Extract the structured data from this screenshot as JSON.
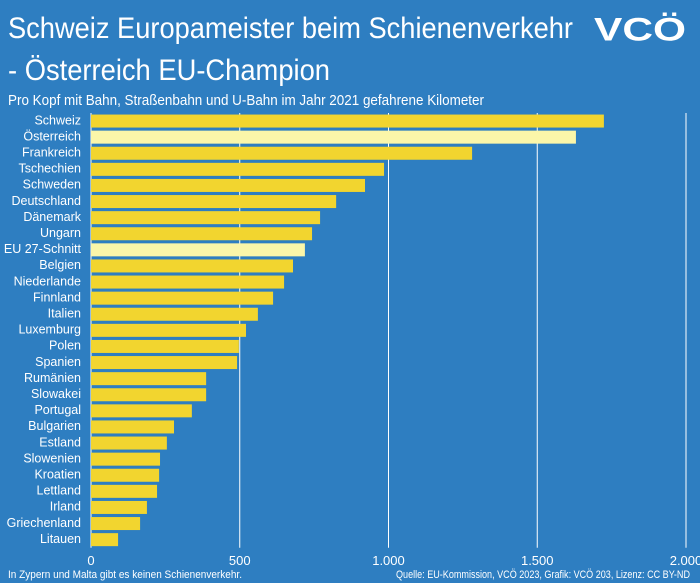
{
  "chart_data": {
    "type": "bar",
    "orientation": "horizontal",
    "title": [
      "Schweiz Europameister beim Schienenverkehr",
      "- Österreich EU-Champion"
    ],
    "logo": "VCÖ",
    "subtitle": "Pro Kopf mit Bahn, Straßenbahn und U-Bahn im Jahr 2021 gefahrene Kilometer",
    "categories": [
      "Schweiz",
      "Österreich",
      "Frankreich",
      "Tschechien",
      "Schweden",
      "Deutschland",
      "Dänemark",
      "Ungarn",
      "EU 27-Schnitt",
      "Belgien",
      "Niederlande",
      "Finnland",
      "Italien",
      "Luxemburg",
      "Polen",
      "Spanien",
      "Rumänien",
      "Slowakei",
      "Portugal",
      "Bulgarien",
      "Estland",
      "Slowenien",
      "Kroatien",
      "Lettland",
      "Irland",
      "Griechenland",
      "Litauen"
    ],
    "values": [
      1724,
      1630,
      1281,
      985,
      921,
      824,
      770,
      743,
      719,
      679,
      649,
      612,
      561,
      521,
      497,
      491,
      387,
      387,
      339,
      279,
      255,
      232,
      229,
      222,
      188,
      165,
      91
    ],
    "colors": [
      "#f2d52f",
      "#fbf6a9",
      "#f2d52f",
      "#f2d52f",
      "#f2d52f",
      "#f2d52f",
      "#f2d52f",
      "#f2d52f",
      "#fbf6a9",
      "#f2d52f",
      "#f2d52f",
      "#f2d52f",
      "#f2d52f",
      "#f2d52f",
      "#f2d52f",
      "#f2d52f",
      "#f2d52f",
      "#f2d52f",
      "#f2d52f",
      "#f2d52f",
      "#f2d52f",
      "#f2d52f",
      "#f2d52f",
      "#f2d52f",
      "#f2d52f",
      "#f2d52f",
      "#f2d52f"
    ],
    "xlim": [
      0,
      2000
    ],
    "xticks": [
      0,
      500,
      {
        "value": 1000,
        "label": "1.000"
      },
      {
        "value": 1500,
        "label": "1.500"
      },
      {
        "value": 2000,
        "label": "2.000"
      }
    ],
    "grid": true,
    "footnote": "In Zypern und Malta gibt es keinen Schienenverkehr.",
    "source": "Quelle: EU-Kommission, VCÖ 2023, Grafik: VCÖ 203, Lizenz: CC BY-ND"
  }
}
